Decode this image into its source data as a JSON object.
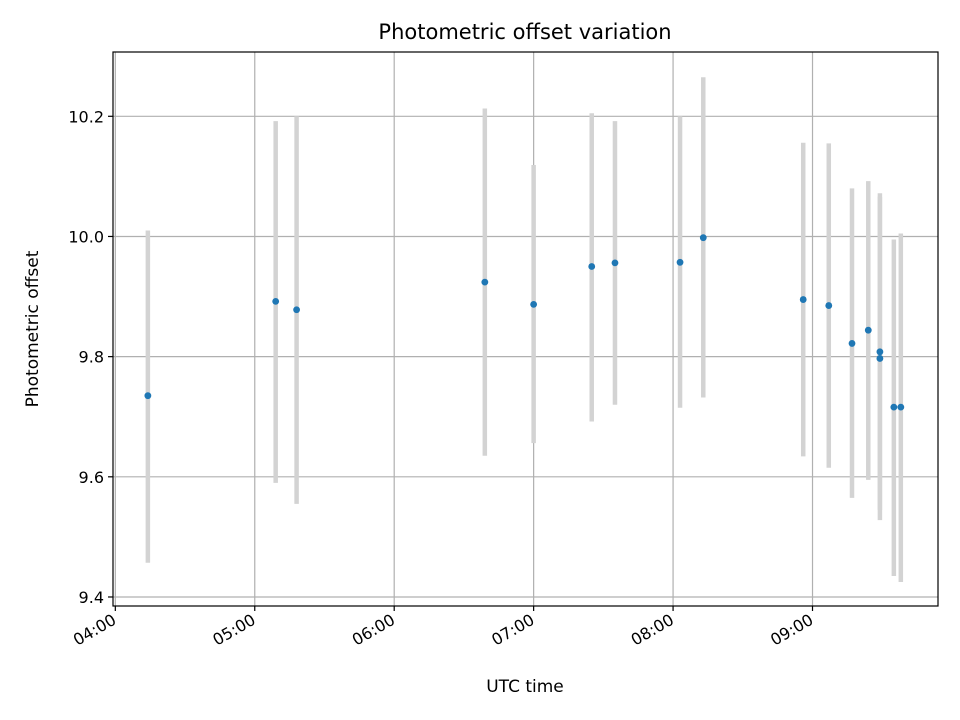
{
  "chart_data": {
    "type": "scatter",
    "title": "Photometric offset variation",
    "xlabel": "UTC time",
    "ylabel": "Photometric offset",
    "x_ticks": [
      "04:00",
      "05:00",
      "06:00",
      "07:00",
      "08:00",
      "09:00"
    ],
    "y_ticks": [
      "9.4",
      "9.6",
      "9.8",
      "10.0",
      "10.2"
    ],
    "x_range": [
      "03:59",
      "09:54"
    ],
    "y_range": [
      9.385,
      10.307
    ],
    "grid": true,
    "marker_color": "#1f77b4",
    "errorbar_color": "#d3d3d3",
    "points": [
      {
        "x": "04:14",
        "y": 9.735,
        "ylow": 9.457,
        "yhigh": 10.01
      },
      {
        "x": "05:09",
        "y": 9.892,
        "ylow": 9.59,
        "yhigh": 10.192
      },
      {
        "x": "05:18",
        "y": 9.878,
        "ylow": 9.555,
        "yhigh": 10.2
      },
      {
        "x": "06:39",
        "y": 9.924,
        "ylow": 9.635,
        "yhigh": 10.213
      },
      {
        "x": "07:00",
        "y": 9.887,
        "ylow": 9.656,
        "yhigh": 10.119
      },
      {
        "x": "07:25",
        "y": 9.95,
        "ylow": 9.692,
        "yhigh": 10.205
      },
      {
        "x": "07:35",
        "y": 9.956,
        "ylow": 9.72,
        "yhigh": 10.192
      },
      {
        "x": "08:03",
        "y": 9.957,
        "ylow": 9.715,
        "yhigh": 10.2
      },
      {
        "x": "08:13",
        "y": 9.998,
        "ylow": 9.732,
        "yhigh": 10.265
      },
      {
        "x": "08:56",
        "y": 9.895,
        "ylow": 9.634,
        "yhigh": 10.156
      },
      {
        "x": "09:07",
        "y": 9.885,
        "ylow": 9.615,
        "yhigh": 10.155
      },
      {
        "x": "09:17",
        "y": 9.822,
        "ylow": 9.565,
        "yhigh": 10.08
      },
      {
        "x": "09:24",
        "y": 9.844,
        "ylow": 9.595,
        "yhigh": 10.092
      },
      {
        "x": "09:29",
        "y": 9.808,
        "ylow": 9.545,
        "yhigh": 10.072
      },
      {
        "x": "09:29",
        "y": 9.797,
        "ylow": 9.528,
        "yhigh": 10.066
      },
      {
        "x": "09:35",
        "y": 9.716,
        "ylow": 9.435,
        "yhigh": 9.995
      },
      {
        "x": "09:38",
        "y": 9.716,
        "ylow": 9.425,
        "yhigh": 10.005
      }
    ]
  }
}
